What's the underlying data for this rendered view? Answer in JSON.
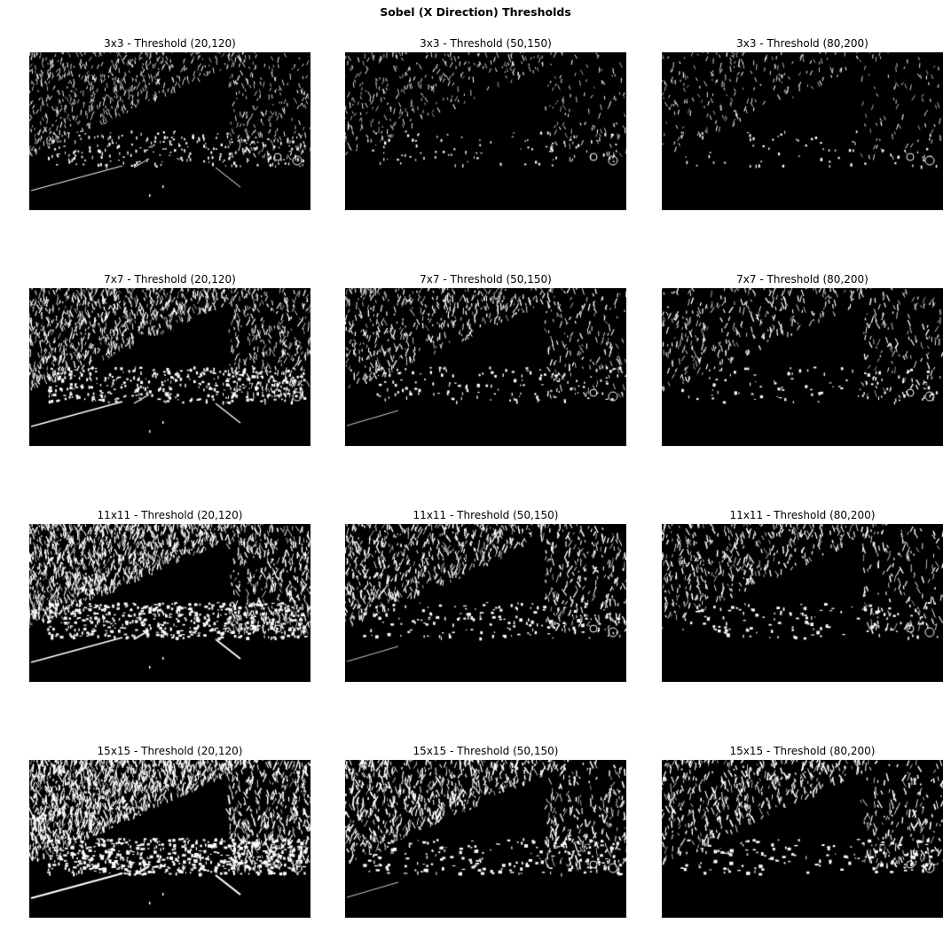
{
  "figure": {
    "title": "Sobel (X Direction) Thresholds"
  },
  "panels": [
    {
      "title": "3x3 - Threshold (20,120)",
      "kernel": "3x3",
      "threshold": [
        20,
        120
      ]
    },
    {
      "title": "3x3 - Threshold (50,150)",
      "kernel": "3x3",
      "threshold": [
        50,
        150
      ]
    },
    {
      "title": "3x3 - Threshold (80,200)",
      "kernel": "3x3",
      "threshold": [
        80,
        200
      ]
    },
    {
      "title": "7x7 - Threshold (20,120)",
      "kernel": "7x7",
      "threshold": [
        20,
        120
      ]
    },
    {
      "title": "7x7 - Threshold (50,150)",
      "kernel": "7x7",
      "threshold": [
        50,
        150
      ]
    },
    {
      "title": "7x7 - Threshold (80,200)",
      "kernel": "7x7",
      "threshold": [
        80,
        200
      ]
    },
    {
      "title": "11x11 - Threshold (20,120)",
      "kernel": "11x11",
      "threshold": [
        20,
        120
      ]
    },
    {
      "title": "11x11 - Threshold (50,150)",
      "kernel": "11x11",
      "threshold": [
        50,
        150
      ]
    },
    {
      "title": "11x11 - Threshold (80,200)",
      "kernel": "11x11",
      "threshold": [
        80,
        200
      ]
    },
    {
      "title": "15x15 - Threshold (20,120)",
      "kernel": "15x15",
      "threshold": [
        20,
        120
      ]
    },
    {
      "title": "15x15 - Threshold (50,150)",
      "kernel": "15x15",
      "threshold": [
        50,
        150
      ]
    },
    {
      "title": "15x15 - Threshold (80,200)",
      "kernel": "15x15",
      "threshold": [
        80,
        200
      ]
    }
  ],
  "colors": {
    "background": "#ffffff",
    "image_background": "#000000",
    "edge_pixels": "#ffffff"
  }
}
